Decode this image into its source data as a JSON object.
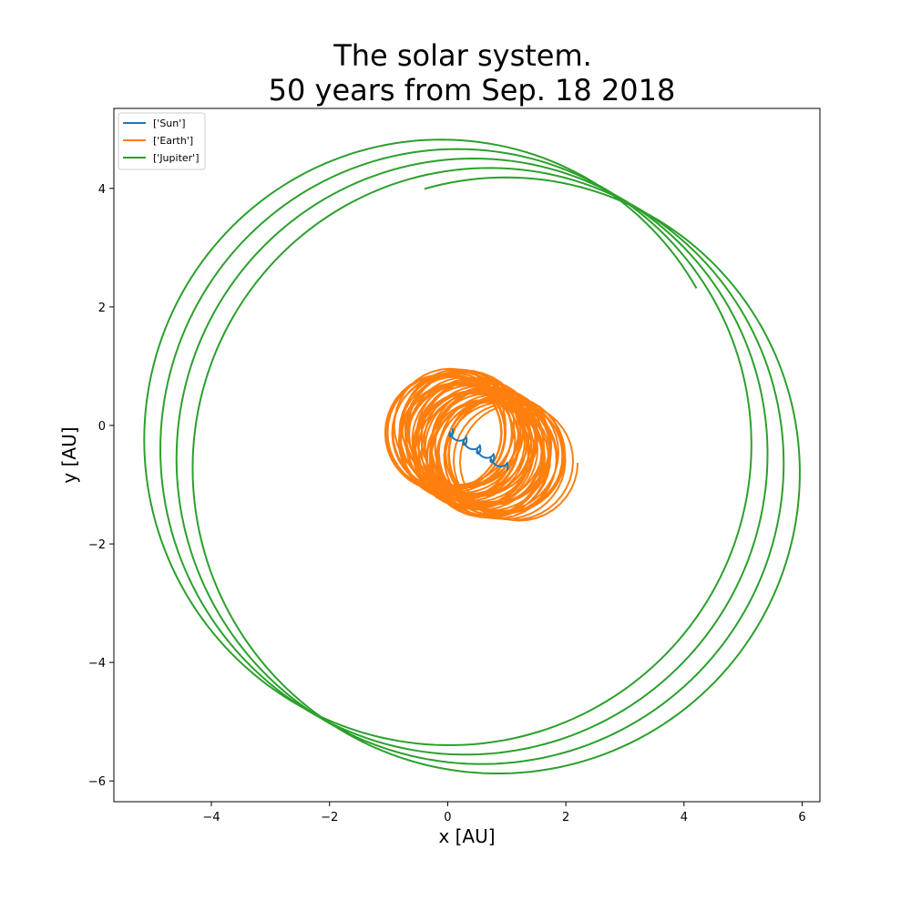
{
  "chart_data": {
    "type": "line",
    "title": "The solar system.",
    "subtitle": "50 years from Sep. 18 2018",
    "xlabel": "x [AU]",
    "ylabel": "y [AU]",
    "xlim": [
      -5.65,
      6.3
    ],
    "ylim": [
      -6.35,
      5.35
    ],
    "xticks": [
      -4,
      -2,
      0,
      2,
      4,
      6
    ],
    "yticks": [
      -6,
      -4,
      -2,
      0,
      2,
      4
    ],
    "xtick_labels": [
      "−4",
      "−2",
      "0",
      "2",
      "4",
      "6"
    ],
    "ytick_labels": [
      "−6",
      "−4",
      "−2",
      "0",
      "2",
      "4"
    ],
    "grid": false,
    "legend_position": "upper-left",
    "drift": {
      "per_year_x": 0.023,
      "per_year_y": -0.0122
    },
    "series": [
      {
        "name": "['Sun']",
        "color": "#1f77b4",
        "start": [
          0.0,
          -0.05
        ],
        "cycles": 4.21,
        "points_per_cycle": 60,
        "radius": 0.08,
        "note_type": "cusp"
      },
      {
        "name": "['Earth']",
        "color": "#ff7f0e",
        "cycles": 50,
        "points_per_cycle": 40,
        "radius": 0.98,
        "center_start": [
          0.0,
          -0.02
        ]
      },
      {
        "name": "['Jupiter']",
        "color": "#2ca02c",
        "cycles": 4.21,
        "points_per_cycle": 200,
        "radius": 5.07,
        "center_start": [
          -0.18,
          -0.22
        ],
        "start_angle_deg": 30,
        "end_point": [
          5.75,
          -1.98
        ]
      }
    ]
  }
}
